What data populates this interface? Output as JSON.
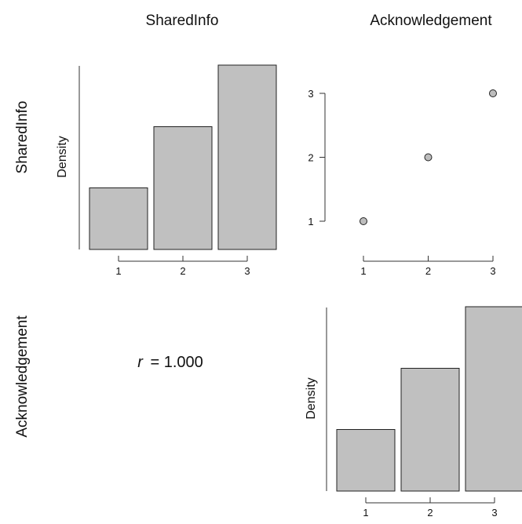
{
  "headers": {
    "col1": "SharedInfo",
    "col2": "Acknowledgement",
    "row1": "SharedInfo",
    "row2": "Acknowledgement"
  },
  "colors": {
    "bar_fill": "#c0c0c0",
    "bar_stroke": "#222222",
    "point_fill": "#bdbdbd",
    "axis": "#333333"
  },
  "chart_data": [
    {
      "type": "bar",
      "title": "",
      "xlabel": "",
      "ylabel": "Density",
      "categories": [
        "1",
        "2",
        "3"
      ],
      "values": [
        0.167,
        0.333,
        0.5
      ],
      "ylim": [
        0,
        0.5
      ],
      "grid": false
    },
    {
      "type": "scatter",
      "title": "",
      "xlabel": "",
      "ylabel": "",
      "x": [
        1,
        2,
        3
      ],
      "y": [
        1,
        2,
        3
      ],
      "xlim": [
        1,
        3
      ],
      "ylim": [
        1,
        3
      ],
      "xticks": [
        "1",
        "2",
        "3"
      ],
      "yticks": [
        "1",
        "2",
        "3"
      ],
      "grid": false
    },
    {
      "type": "table",
      "annotation_symbol": "r",
      "annotation_value": "= 1.000",
      "value": 1.0
    },
    {
      "type": "bar",
      "title": "",
      "xlabel": "",
      "ylabel": "Density",
      "categories": [
        "1",
        "2",
        "3"
      ],
      "values": [
        0.167,
        0.333,
        0.5
      ],
      "ylim": [
        0,
        0.5
      ],
      "grid": false
    }
  ]
}
